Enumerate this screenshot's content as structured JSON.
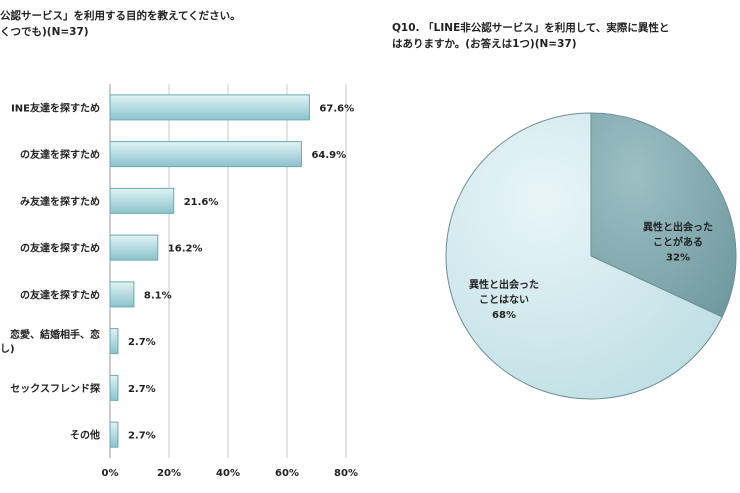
{
  "left_chart": {
    "title_lines": [
      "公認サービス」を利用する目的を教えてください。",
      "くつでも)(N=37)"
    ]
  },
  "right_chart": {
    "title_lines": [
      "Q10. 「LINE非公認サービス」を利用して、実際に異性と",
      "はありますか。(お答えは1つ)(N=37)"
    ]
  },
  "chart_data": [
    {
      "type": "bar",
      "orientation": "horizontal",
      "title": "公認サービス」を利用する目的を教えてください。くつでも)(N=37)",
      "categories": [
        "INE友達を探すため",
        "の友達を探すため",
        "み友達を探すため",
        "の友達を探すため",
        "の友達を探すため",
        "恋愛、結婚相手、恋し",
        "セックスフレンド探",
        "その他"
      ],
      "category_lines": [
        [
          "INE友達を探すため"
        ],
        [
          "の友達を探すため"
        ],
        [
          "み友達を探すため"
        ],
        [
          "の友達を探すため"
        ],
        [
          "の友達を探すため"
        ],
        [
          "恋愛、結婚相手、恋",
          "し)"
        ],
        [
          "セックスフレンド探"
        ],
        [
          "その他"
        ]
      ],
      "values": [
        67.6,
        64.9,
        21.6,
        16.2,
        8.1,
        2.7,
        2.7,
        2.7
      ],
      "value_labels": [
        "67.6%",
        "64.9%",
        "21.6%",
        "16.2%",
        "8.1%",
        "2.7%",
        "2.7%",
        "2.7%"
      ],
      "xlim": [
        0,
        80
      ],
      "xticks": [
        "0%",
        "20%",
        "40%",
        "60%",
        "80%"
      ],
      "grid": "vertical",
      "colors": {
        "bar_fill": "#b7dde3",
        "bar_edge": "#6aa9b3",
        "grid": "#c8c8c8"
      }
    },
    {
      "type": "pie",
      "title": "Q10. 「LINE非公認サービス」を利用して、実際に異性と はありますか。(お答えは1つ)(N=37)",
      "slices": [
        {
          "label_lines": [
            "異性と出会った",
            "ことがある",
            "32%"
          ],
          "value": 32,
          "color": "#7fa8ad"
        },
        {
          "label_lines": [
            "異性と出会った",
            "ことはない",
            "68%"
          ],
          "value": 68,
          "color": "#c6e3e8"
        }
      ]
    }
  ]
}
